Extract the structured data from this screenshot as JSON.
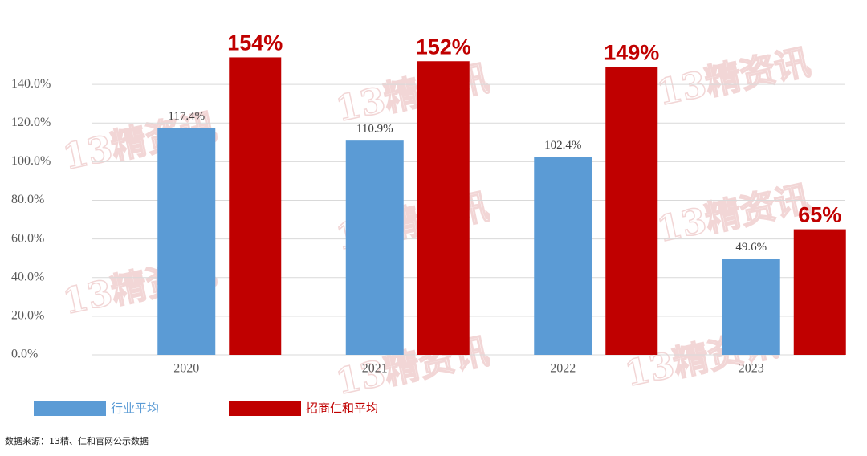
{
  "chart_data": {
    "type": "bar",
    "watermark": "13精资讯",
    "source": "数据来源：13精、仁和官网公示数据",
    "categories": [
      "2020",
      "2021",
      "2022",
      "2023"
    ],
    "series": [
      {
        "name": "行业平均",
        "color": "#5b9bd5",
        "values": [
          117.4,
          110.9,
          102.4,
          49.6
        ],
        "value_labels": [
          "117.4%",
          "110.9%",
          "102.4%",
          "49.6%"
        ]
      },
      {
        "name": "招商仁和平均",
        "color": "#c00000",
        "values": [
          154,
          152,
          149,
          65
        ],
        "value_labels": [
          "154%",
          "152%",
          "149%",
          "65%"
        ]
      }
    ],
    "ylim": [
      0,
      160
    ],
    "yticks": [
      {
        "value": 0,
        "label": "0.0%"
      },
      {
        "value": 20,
        "label": "20.0%"
      },
      {
        "value": 40,
        "label": "40.0%"
      },
      {
        "value": 60,
        "label": "60.0%"
      },
      {
        "value": 80,
        "label": "80.0%"
      },
      {
        "value": 100,
        "label": "100.0%"
      },
      {
        "value": 120,
        "label": "120.0%"
      },
      {
        "value": 140,
        "label": "140.0%"
      }
    ],
    "grid": true
  }
}
